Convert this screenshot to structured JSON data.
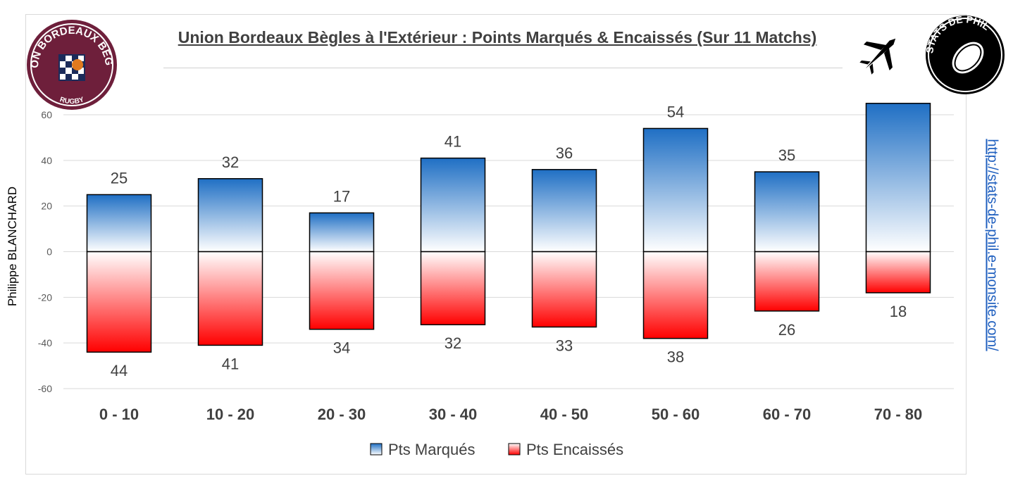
{
  "header": {
    "title": "Union Bordeaux Bègles à l'Extérieur : Points Marqués & Encaissés (Sur 11 Matchs)",
    "author": "Philippe BLANCHARD",
    "site": "http://stats-de-phil.e-monsite.com/",
    "logo_left_text_top": "UNION BORDEAUX BEGLES",
    "logo_left_text_bottom": "RUGBY",
    "logo_right_text": "STATS DE PHIL"
  },
  "icons": {
    "travel": "airplane-icon",
    "logo_left": "club-crest-logo",
    "logo_right": "rugby-ball-logo"
  },
  "chart_data": {
    "type": "bar",
    "categories": [
      "0 - 10",
      "10 - 20",
      "20 - 30",
      "30 - 40",
      "40 - 50",
      "50 - 60",
      "60 - 70",
      "70 - 80"
    ],
    "series": [
      {
        "name": "Pts Marqués",
        "values": [
          25,
          32,
          17,
          41,
          36,
          54,
          35,
          65
        ],
        "labels": [
          "25",
          "32",
          "17",
          "41",
          "36",
          "54",
          "35",
          ""
        ],
        "color": "#1f6fc4"
      },
      {
        "name": "Pts Encaissés",
        "values": [
          -44,
          -41,
          -34,
          -32,
          -33,
          -38,
          -26,
          -18
        ],
        "labels": [
          "44",
          "41",
          "34",
          "32",
          "33",
          "38",
          "26",
          "18"
        ],
        "color": "#ff0000"
      }
    ],
    "yticks": [
      "60",
      "40",
      "20",
      "0",
      "-20",
      "-40",
      "-60"
    ],
    "ylim": [
      -60,
      60
    ],
    "grid": true,
    "legend": "bottom"
  }
}
